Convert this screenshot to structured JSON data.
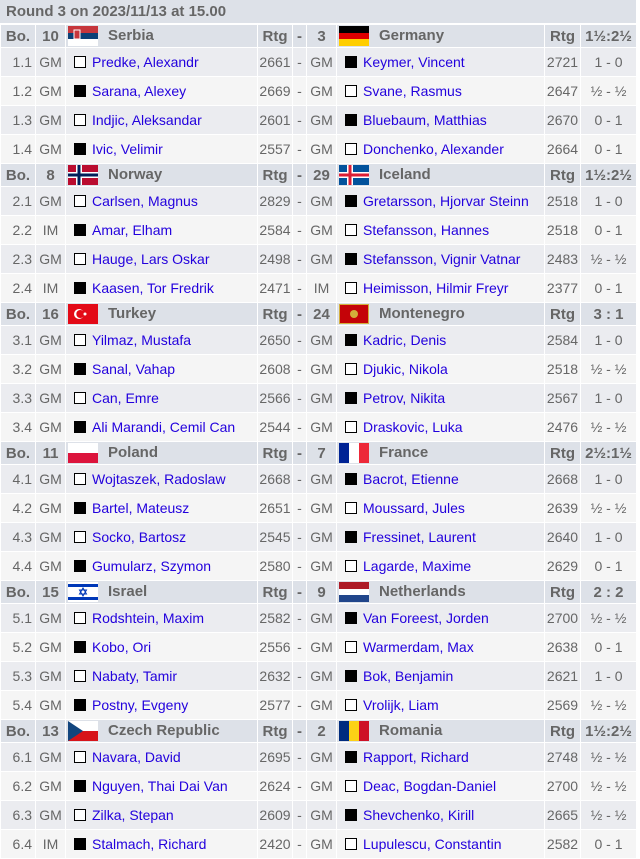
{
  "title": "Round 3 on 2023/11/13 at 15.00",
  "labels": {
    "board": "Bo.",
    "rating": "Rtg",
    "dash": "-"
  },
  "matches": [
    {
      "no1": "10",
      "team1": "Serbia",
      "flag1": "serbia-flag",
      "no2": "3",
      "team2": "Germany",
      "flag2": "germany-flag",
      "result": "1½:2½",
      "games": [
        [
          "1.1",
          "GM",
          "white",
          "Predke, Alexandr",
          "2661",
          "GM",
          "black",
          "Keymer, Vincent",
          "2721",
          "1 - 0"
        ],
        [
          "1.2",
          "GM",
          "black",
          "Sarana, Alexey",
          "2669",
          "GM",
          "white",
          "Svane, Rasmus",
          "2647",
          "½ - ½"
        ],
        [
          "1.3",
          "GM",
          "white",
          "Indjic, Aleksandar",
          "2601",
          "GM",
          "black",
          "Bluebaum, Matthias",
          "2670",
          "0 - 1"
        ],
        [
          "1.4",
          "GM",
          "black",
          "Ivic, Velimir",
          "2557",
          "GM",
          "white",
          "Donchenko, Alexander",
          "2664",
          "0 - 1"
        ]
      ]
    },
    {
      "no1": "8",
      "team1": "Norway",
      "flag1": "norway-flag",
      "no2": "29",
      "team2": "Iceland",
      "flag2": "iceland-flag",
      "result": "1½:2½",
      "games": [
        [
          "2.1",
          "GM",
          "white",
          "Carlsen, Magnus",
          "2829",
          "GM",
          "black",
          "Gretarsson, Hjorvar Steinn",
          "2518",
          "1 - 0"
        ],
        [
          "2.2",
          "IM",
          "black",
          "Amar, Elham",
          "2584",
          "GM",
          "white",
          "Stefansson, Hannes",
          "2518",
          "0 - 1"
        ],
        [
          "2.3",
          "GM",
          "white",
          "Hauge, Lars Oskar",
          "2498",
          "GM",
          "black",
          "Stefansson, Vignir Vatnar",
          "2483",
          "½ - ½"
        ],
        [
          "2.4",
          "IM",
          "black",
          "Kaasen, Tor Fredrik",
          "2471",
          "IM",
          "white",
          "Heimisson, Hilmir Freyr",
          "2377",
          "0 - 1"
        ]
      ]
    },
    {
      "no1": "16",
      "team1": "Turkey",
      "flag1": "turkey-flag",
      "no2": "24",
      "team2": "Montenegro",
      "flag2": "montenegro-flag",
      "result": "3 : 1",
      "games": [
        [
          "3.1",
          "GM",
          "white",
          "Yilmaz, Mustafa",
          "2650",
          "GM",
          "black",
          "Kadric, Denis",
          "2584",
          "1 - 0"
        ],
        [
          "3.2",
          "GM",
          "black",
          "Sanal, Vahap",
          "2608",
          "GM",
          "white",
          "Djukic, Nikola",
          "2518",
          "½ - ½"
        ],
        [
          "3.3",
          "GM",
          "white",
          "Can, Emre",
          "2566",
          "GM",
          "black",
          "Petrov, Nikita",
          "2567",
          "1 - 0"
        ],
        [
          "3.4",
          "GM",
          "black",
          "Ali Marandi, Cemil Can",
          "2544",
          "GM",
          "white",
          "Draskovic, Luka",
          "2476",
          "½ - ½"
        ]
      ]
    },
    {
      "no1": "11",
      "team1": "Poland",
      "flag1": "poland-flag",
      "no2": "7",
      "team2": "France",
      "flag2": "france-flag",
      "result": "2½:1½",
      "games": [
        [
          "4.1",
          "GM",
          "white",
          "Wojtaszek, Radoslaw",
          "2668",
          "GM",
          "black",
          "Bacrot, Etienne",
          "2668",
          "1 - 0"
        ],
        [
          "4.2",
          "GM",
          "black",
          "Bartel, Mateusz",
          "2651",
          "GM",
          "white",
          "Moussard, Jules",
          "2639",
          "½ - ½"
        ],
        [
          "4.3",
          "GM",
          "white",
          "Socko, Bartosz",
          "2545",
          "GM",
          "black",
          "Fressinet, Laurent",
          "2640",
          "1 - 0"
        ],
        [
          "4.4",
          "GM",
          "black",
          "Gumularz, Szymon",
          "2580",
          "GM",
          "white",
          "Lagarde, Maxime",
          "2629",
          "0 - 1"
        ]
      ]
    },
    {
      "no1": "15",
      "team1": "Israel",
      "flag1": "israel-flag",
      "no2": "9",
      "team2": "Netherlands",
      "flag2": "netherlands-flag",
      "result": "2 : 2",
      "games": [
        [
          "5.1",
          "GM",
          "white",
          "Rodshtein, Maxim",
          "2582",
          "GM",
          "black",
          "Van Foreest, Jorden",
          "2700",
          "½ - ½"
        ],
        [
          "5.2",
          "GM",
          "black",
          "Kobo, Ori",
          "2556",
          "GM",
          "white",
          "Warmerdam, Max",
          "2638",
          "0 - 1"
        ],
        [
          "5.3",
          "GM",
          "white",
          "Nabaty, Tamir",
          "2632",
          "GM",
          "black",
          "Bok, Benjamin",
          "2621",
          "1 - 0"
        ],
        [
          "5.4",
          "GM",
          "black",
          "Postny, Evgeny",
          "2577",
          "GM",
          "white",
          "Vrolijk, Liam",
          "2569",
          "½ - ½"
        ]
      ]
    },
    {
      "no1": "13",
      "team1": "Czech Republic",
      "flag1": "czech-flag",
      "no2": "2",
      "team2": "Romania",
      "flag2": "romania-flag",
      "result": "1½:2½",
      "games": [
        [
          "6.1",
          "GM",
          "white",
          "Navara, David",
          "2695",
          "GM",
          "black",
          "Rapport, Richard",
          "2748",
          "½ - ½"
        ],
        [
          "6.2",
          "GM",
          "black",
          "Nguyen, Thai Dai Van",
          "2624",
          "GM",
          "white",
          "Deac, Bogdan-Daniel",
          "2700",
          "½ - ½"
        ],
        [
          "6.3",
          "GM",
          "white",
          "Zilka, Stepan",
          "2609",
          "GM",
          "black",
          "Shevchenko, Kirill",
          "2665",
          "½ - ½"
        ],
        [
          "6.4",
          "IM",
          "black",
          "Stalmach, Richard",
          "2420",
          "GM",
          "white",
          "Lupulescu, Constantin",
          "2582",
          "0 - 1"
        ]
      ]
    }
  ]
}
